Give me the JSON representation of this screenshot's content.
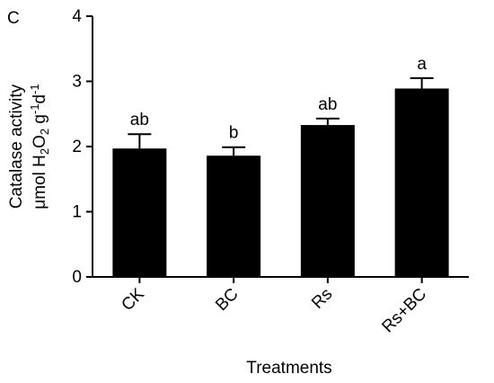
{
  "panel_label": "C",
  "chart_data": {
    "type": "bar",
    "categories": [
      "CK",
      "BC",
      "Rs",
      "Rs+BC"
    ],
    "values": [
      1.97,
      1.86,
      2.33,
      2.89
    ],
    "errors": [
      0.22,
      0.13,
      0.1,
      0.16
    ],
    "significance": [
      "ab",
      "b",
      "ab",
      "a"
    ],
    "title": "",
    "xlabel": "Treatments",
    "ylabel": {
      "line1": "Catalase activity",
      "unit": {
        "p1": "μmol H",
        "s1": "2",
        "p2": "O",
        "s2": "2",
        "p3": " g",
        "s3": "-1",
        "p4": "d",
        "s4": "-1"
      }
    },
    "ylim": [
      0,
      4
    ],
    "yticks": [
      "0",
      "1",
      "2",
      "3",
      "4"
    ],
    "bar_color": "#000000",
    "grid": false,
    "legend": "none"
  }
}
